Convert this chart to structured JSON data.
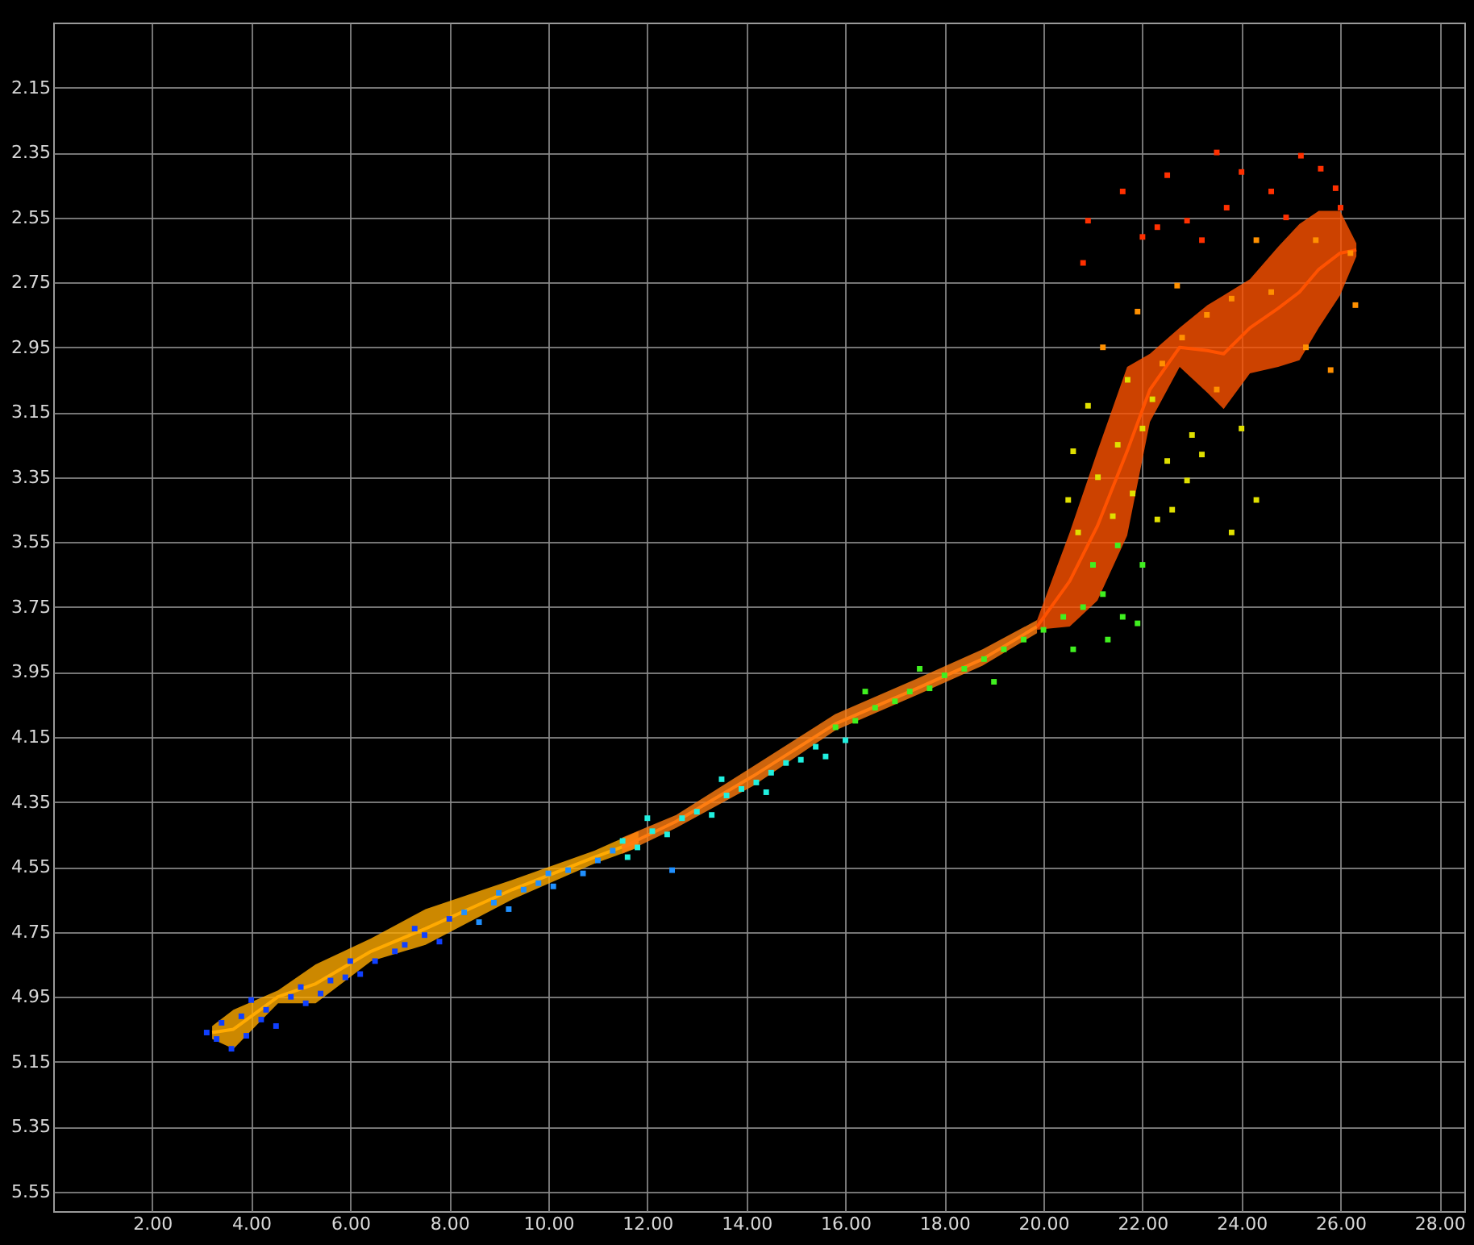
{
  "chart_data": {
    "type": "scatter",
    "xlim": [
      0,
      28.5
    ],
    "ylim": [
      5.61,
      1.95
    ],
    "xticks": [
      {
        "value": 2,
        "label": "2.00"
      },
      {
        "value": 4,
        "label": "4.00"
      },
      {
        "value": 6,
        "label": "6.00"
      },
      {
        "value": 8,
        "label": "8.00"
      },
      {
        "value": 10,
        "label": "10.00"
      },
      {
        "value": 12,
        "label": "12.00"
      },
      {
        "value": 14,
        "label": "14.00"
      },
      {
        "value": 16,
        "label": "16.00"
      },
      {
        "value": 18,
        "label": "18.00"
      },
      {
        "value": 20,
        "label": "20.00"
      },
      {
        "value": 22,
        "label": "22.00"
      },
      {
        "value": 24,
        "label": "24.00"
      },
      {
        "value": 26,
        "label": "26.00"
      },
      {
        "value": 28,
        "label": "28.00"
      }
    ],
    "yticks": [
      2.15,
      2.35,
      2.55,
      2.75,
      2.95,
      3.15,
      3.35,
      3.55,
      3.75,
      3.95,
      4.15,
      4.35,
      4.55,
      4.75,
      4.95,
      5.15,
      5.35,
      5.55
    ],
    "grid": true,
    "marker": "square",
    "series": [
      {
        "type": "line",
        "marker": "none",
        "color": "#ffaa00",
        "x": [
          3.21,
          3.64,
          4.54,
          5.3,
          6.42,
          7.52,
          9.27,
          10.93,
          11.82
        ],
        "values": [
          5.06,
          5.05,
          4.95,
          4.91,
          4.81,
          4.74,
          4.62,
          4.52,
          4.47
        ],
        "lower": [
          5.08,
          5.11,
          4.97,
          4.97,
          4.84,
          4.79,
          4.65,
          4.54,
          4.49
        ],
        "upper": [
          5.04,
          4.99,
          4.93,
          4.85,
          4.77,
          4.68,
          4.59,
          4.5,
          4.44
        ]
      },
      {
        "type": "line",
        "marker": "none",
        "color": "#ff7d10",
        "x": [
          11.49,
          12.58,
          14.14,
          15.79,
          17.45,
          18.77,
          19.87
        ],
        "values": [
          4.49,
          4.41,
          4.27,
          4.11,
          4.0,
          3.91,
          3.81
        ],
        "lower": [
          4.51,
          4.43,
          4.3,
          4.13,
          4.02,
          3.93,
          3.83
        ],
        "upper": [
          4.46,
          4.39,
          4.24,
          4.08,
          3.97,
          3.88,
          3.79
        ]
      },
      {
        "type": "line",
        "marker": "none",
        "color": "#ff5200",
        "x": [
          19.87,
          20.53,
          21.09,
          21.69,
          22.15,
          22.75,
          23.31,
          23.64,
          24.17,
          24.74,
          25.17,
          25.56,
          25.99,
          26.32
        ],
        "values": [
          3.81,
          3.67,
          3.5,
          3.27,
          3.08,
          2.95,
          2.96,
          2.97,
          2.89,
          2.83,
          2.78,
          2.71,
          2.66,
          2.65
        ],
        "lower": [
          3.82,
          3.81,
          3.73,
          3.53,
          3.18,
          3.01,
          3.09,
          3.14,
          3.03,
          3.01,
          2.99,
          2.89,
          2.79,
          2.67
        ],
        "upper": [
          3.79,
          3.52,
          3.27,
          3.01,
          2.97,
          2.89,
          2.82,
          2.79,
          2.74,
          2.64,
          2.57,
          2.53,
          2.53,
          2.63
        ]
      },
      {
        "color": "#1040ff",
        "x": [
          3.1,
          3.3,
          3.6,
          3.9,
          3.8,
          4.2,
          4.5,
          4.3,
          4.8,
          5.1,
          5.4,
          5.0,
          5.6,
          5.9,
          6.2,
          6.0,
          6.5,
          6.9,
          7.1,
          7.5,
          7.8,
          8.0,
          7.3,
          4.0,
          3.4
        ],
        "values": [
          5.06,
          5.08,
          5.11,
          5.07,
          5.01,
          5.02,
          5.04,
          4.99,
          4.95,
          4.97,
          4.94,
          4.92,
          4.9,
          4.89,
          4.88,
          4.84,
          4.84,
          4.81,
          4.79,
          4.76,
          4.78,
          4.71,
          4.74,
          4.96,
          5.03
        ]
      },
      {
        "color": "#2090ff",
        "x": [
          8.3,
          8.6,
          8.9,
          9.2,
          9.5,
          9.8,
          10.1,
          10.4,
          10.7,
          11.0,
          11.3,
          9.0,
          10.0,
          12.5
        ],
        "values": [
          4.69,
          4.72,
          4.66,
          4.68,
          4.62,
          4.6,
          4.61,
          4.56,
          4.57,
          4.53,
          4.5,
          4.63,
          4.57,
          4.56
        ]
      },
      {
        "color": "#20f0e0",
        "x": [
          11.5,
          11.8,
          12.1,
          12.4,
          12.7,
          13.0,
          13.3,
          13.6,
          13.9,
          14.2,
          14.5,
          14.8,
          15.1,
          15.4,
          12.0,
          13.5,
          11.6,
          14.4,
          15.6,
          16.0
        ],
        "values": [
          4.47,
          4.49,
          4.44,
          4.45,
          4.4,
          4.38,
          4.39,
          4.33,
          4.31,
          4.29,
          4.26,
          4.23,
          4.22,
          4.18,
          4.4,
          4.28,
          4.52,
          4.32,
          4.21,
          4.16
        ]
      },
      {
        "color": "#40f020",
        "x": [
          15.8,
          16.2,
          16.6,
          17.0,
          17.3,
          17.7,
          18.0,
          18.4,
          18.8,
          19.2,
          19.6,
          20.0,
          20.4,
          20.8,
          21.2,
          21.6,
          21.3,
          21.9,
          16.4,
          19.0,
          17.5,
          21.0,
          20.6,
          21.5,
          22.0
        ],
        "values": [
          4.12,
          4.1,
          4.06,
          4.04,
          4.01,
          4.0,
          3.96,
          3.94,
          3.91,
          3.88,
          3.85,
          3.82,
          3.78,
          3.75,
          3.71,
          3.78,
          3.85,
          3.8,
          4.01,
          3.98,
          3.94,
          3.62,
          3.88,
          3.56,
          3.62
        ]
      },
      {
        "color": "#e0e000",
        "x": [
          20.9,
          20.6,
          20.5,
          20.7,
          21.1,
          21.5,
          22.0,
          21.8,
          22.3,
          22.5,
          22.9,
          23.2,
          23.8,
          24.3,
          21.4,
          22.2,
          23.0,
          21.7,
          22.6,
          24.0
        ],
        "values": [
          3.13,
          3.27,
          3.42,
          3.52,
          3.35,
          3.25,
          3.2,
          3.4,
          3.48,
          3.3,
          3.36,
          3.28,
          3.52,
          3.42,
          3.47,
          3.11,
          3.22,
          3.05,
          3.45,
          3.2
        ]
      },
      {
        "color": "#ff9000",
        "x": [
          21.2,
          21.9,
          22.4,
          22.8,
          23.3,
          23.8,
          24.6,
          25.3,
          25.8,
          26.3,
          25.5,
          24.3,
          22.7,
          23.5,
          26.2
        ],
        "values": [
          2.95,
          2.84,
          3.0,
          2.92,
          2.85,
          2.8,
          2.78,
          2.95,
          3.02,
          2.82,
          2.62,
          2.62,
          2.76,
          3.08,
          2.66
        ]
      },
      {
        "color": "#ff3000",
        "x": [
          20.9,
          20.8,
          21.6,
          22.3,
          22.5,
          22.9,
          23.5,
          24.0,
          23.2,
          24.6,
          25.2,
          25.6,
          25.9,
          24.9,
          23.7,
          22.0,
          26.0
        ],
        "values": [
          2.56,
          2.69,
          2.47,
          2.58,
          2.42,
          2.56,
          2.35,
          2.41,
          2.62,
          2.47,
          2.36,
          2.4,
          2.46,
          2.55,
          2.52,
          2.61,
          2.52
        ]
      }
    ]
  }
}
